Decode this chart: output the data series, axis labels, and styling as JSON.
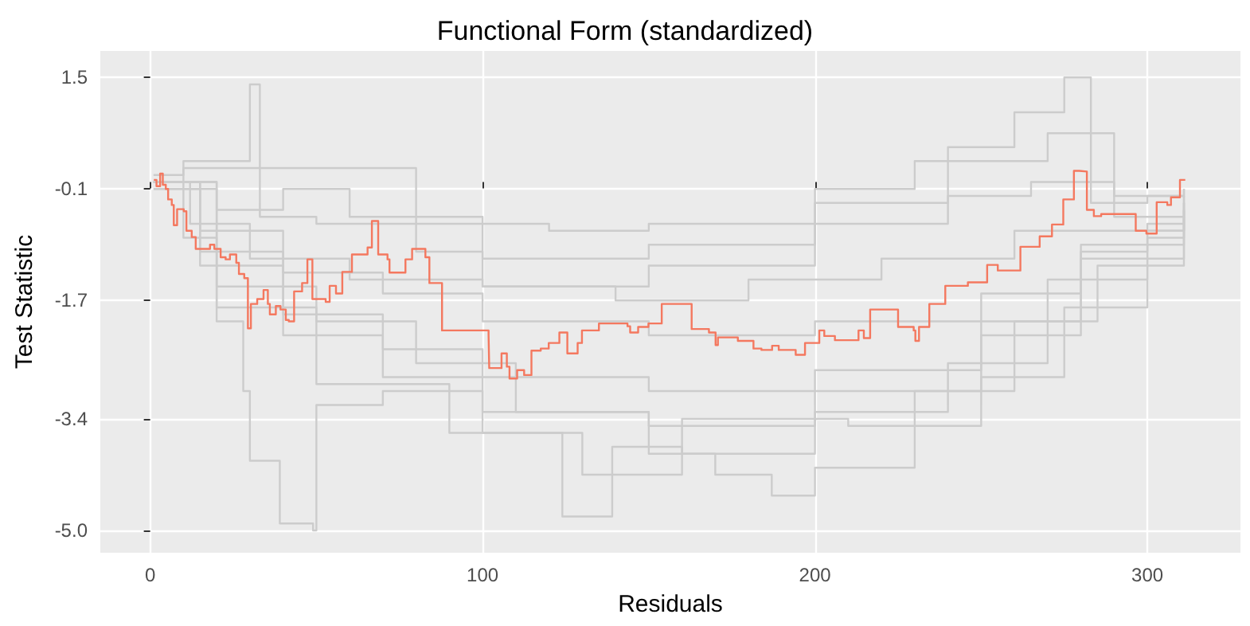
{
  "chart_data": {
    "type": "step",
    "title": "Functional Form (standardized)",
    "xlabel": "Residuals",
    "ylabel": "Test Statistic",
    "xlim": [
      -15,
      328
    ],
    "ylim": [
      -5.32,
      1.88
    ],
    "xticks": [
      0,
      100,
      200,
      300
    ],
    "yticks": [
      {
        "value": -5,
        "label": "-5.0"
      },
      {
        "value": -3.4,
        "label": "-3.4"
      },
      {
        "value": -1.7,
        "label": "-1.7"
      },
      {
        "value": -0.1,
        "label": "-0.1"
      },
      {
        "value": 1.5,
        "label": "1.5"
      }
    ],
    "grid": true,
    "marker": "none",
    "line_style": "solid",
    "series": [
      {
        "color": "#cccccc",
        "x": [
          1,
          10,
          30,
          33,
          50,
          80,
          100,
          150,
          200,
          240,
          260,
          275,
          283,
          300,
          311
        ],
        "values": [
          0,
          0.3,
          1.4,
          -0.5,
          -0.6,
          -1.0,
          -1.5,
          -1.2,
          -0.3,
          0.5,
          1.0,
          1.5,
          -0.3,
          -0.2,
          -0.1
        ]
      },
      {
        "color": "#cccccc",
        "x": [
          1,
          10,
          20,
          28,
          30,
          39,
          49,
          50,
          70,
          100,
          150,
          200,
          250,
          280,
          300,
          311
        ],
        "values": [
          0,
          -0.8,
          -2.0,
          -3.0,
          -4.0,
          -4.9,
          -5.0,
          -3.2,
          -3.0,
          -3.3,
          -3.5,
          -3.0,
          -2.0,
          -1.0,
          -0.6,
          -0.3
        ]
      },
      {
        "color": "#cccccc",
        "x": [
          1,
          15,
          40,
          70,
          100,
          124,
          139,
          160,
          200,
          240,
          270,
          300,
          311
        ],
        "values": [
          -0.1,
          -1.2,
          -2.2,
          -2.8,
          -3.6,
          -4.8,
          -3.8,
          -3.9,
          -3.3,
          -2.6,
          -1.4,
          -0.7,
          -0.4
        ]
      },
      {
        "color": "#cccccc",
        "x": [
          1,
          20,
          50,
          80,
          110,
          150,
          170,
          187,
          200,
          230,
          260,
          285,
          311
        ],
        "values": [
          0,
          -1.5,
          -2.0,
          -2.6,
          -3.3,
          -3.9,
          -4.2,
          -4.5,
          -4.1,
          -3.0,
          -2.0,
          -1.2,
          -0.4
        ]
      },
      {
        "color": "#cccccc",
        "x": [
          1,
          10,
          40,
          80,
          120,
          150,
          200,
          230,
          270,
          290,
          311
        ],
        "values": [
          0.1,
          0.2,
          0.2,
          -0.6,
          -0.7,
          -0.6,
          -0.1,
          0.3,
          0.7,
          -0.5,
          -0.3
        ]
      },
      {
        "color": "#cccccc",
        "x": [
          1,
          15,
          40,
          70,
          100,
          150,
          200,
          250,
          280,
          311
        ],
        "values": [
          0,
          -0.7,
          -1.3,
          -1.6,
          -2.0,
          -2.2,
          -2.0,
          -1.6,
          -0.9,
          -0.2
        ]
      },
      {
        "color": "#cccccc",
        "x": [
          1,
          15,
          40,
          70,
          100,
          150,
          200,
          250,
          280,
          311
        ],
        "values": [
          0,
          -1.0,
          -1.9,
          -2.4,
          -2.8,
          -3.0,
          -2.7,
          -2.2,
          -1.1,
          -0.5
        ]
      },
      {
        "color": "#cccccc",
        "x": [
          1,
          12,
          30,
          60,
          100,
          140,
          180,
          220,
          260,
          311
        ],
        "values": [
          0,
          -0.6,
          -1.1,
          -1.4,
          -1.5,
          -1.7,
          -1.4,
          -1.1,
          -0.7,
          -0.2
        ]
      },
      {
        "color": "#cccccc",
        "x": [
          1,
          20,
          50,
          90,
          130,
          160,
          210,
          250,
          275,
          300,
          311
        ],
        "values": [
          -0.1,
          -1.8,
          -2.9,
          -3.6,
          -4.2,
          -3.4,
          -3.5,
          -2.8,
          -1.8,
          -0.8,
          -0.5
        ]
      },
      {
        "color": "#cccccc",
        "x": [
          1,
          20,
          40,
          60,
          100,
          150,
          200,
          240,
          265,
          290,
          311
        ],
        "values": [
          0,
          -0.4,
          -0.1,
          -0.5,
          -1.1,
          -0.9,
          -0.6,
          -0.2,
          0.0,
          -0.2,
          -0.1
        ]
      },
      {
        "color": "#f4785f",
        "x": [
          1.1,
          1.9,
          3.0,
          3.8,
          4.7,
          5.4,
          6.5,
          7.1,
          8.1,
          10.1,
          10.9,
          12.5,
          13.7,
          18.0,
          19.3,
          21.2,
          22.7,
          24.0,
          25.9,
          26.7,
          28.3,
          29.4,
          30.3,
          32.2,
          34.1,
          35.4,
          36.0,
          37.8,
          39.2,
          40.8,
          41.7,
          43.3,
          45.7,
          47.3,
          48.8,
          52.8,
          54.0,
          55.9,
          57.8,
          60.7,
          65.4,
          66.7,
          68.6,
          71.4,
          72.0,
          76.8,
          78.8,
          82.8,
          84.0,
          87.8,
          101.8,
          102.0,
          105.7,
          107.3,
          108.1,
          110.4,
          112.5,
          114.7,
          117.5,
          119.9,
          123.1,
          125.5,
          128.6,
          129.9,
          135.0,
          143.6,
          144.4,
          146.8,
          149.9,
          153.9,
          162.9,
          168.1,
          170.1,
          170.8,
          176.8,
          181.5,
          183.9,
          187.1,
          189.1,
          194.2,
          197.0,
          201.3,
          202.8,
          206.0,
          213.1,
          214.7,
          216.6,
          221.8,
          225.0,
          229.7,
          230.2,
          231.3,
          234.4,
          239.2,
          246.0,
          251.8,
          255.0,
          261.8,
          267.6,
          271.3,
          274.7,
          277.9,
          279.5,
          281.8,
          283.9,
          286.1,
          296.5,
          299.7,
          302.8,
          306.0,
          307.1,
          309.8,
          311.4
        ],
        "values": [
          0.03,
          -0.06,
          0.12,
          -0.04,
          -0.1,
          -0.25,
          -0.33,
          -0.62,
          -0.39,
          -0.42,
          -0.7,
          -0.79,
          -0.96,
          -0.9,
          -0.96,
          -1.08,
          -1.11,
          -1.04,
          -1.16,
          -1.32,
          -1.38,
          -2.1,
          -1.75,
          -1.68,
          -1.55,
          -1.75,
          -1.9,
          -1.78,
          -1.83,
          -1.98,
          -2.0,
          -1.57,
          -1.45,
          -1.11,
          -1.68,
          -1.72,
          -1.49,
          -1.6,
          -1.29,
          -1.04,
          -0.94,
          -0.56,
          -1.04,
          -1.11,
          -1.3,
          -1.11,
          -0.96,
          -1.08,
          -1.45,
          -2.13,
          -2.19,
          -2.67,
          -2.46,
          -2.65,
          -2.82,
          -2.7,
          -2.77,
          -2.42,
          -2.39,
          -2.31,
          -2.16,
          -2.46,
          -2.31,
          -2.13,
          -2.03,
          -2.07,
          -2.16,
          -2.08,
          -2.03,
          -1.75,
          -2.11,
          -2.16,
          -2.34,
          -2.23,
          -2.28,
          -2.39,
          -2.41,
          -2.35,
          -2.41,
          -2.48,
          -2.31,
          -2.13,
          -2.21,
          -2.27,
          -2.13,
          -2.24,
          -1.83,
          -1.83,
          -2.08,
          -2.13,
          -2.28,
          -2.08,
          -1.75,
          -1.49,
          -1.44,
          -1.19,
          -1.27,
          -0.93,
          -0.78,
          -0.61,
          -0.25,
          0.16,
          0.15,
          -0.4,
          -0.49,
          -0.46,
          -0.7,
          -0.74,
          -0.29,
          -0.33,
          -0.22,
          0.03,
          0.02
        ]
      }
    ]
  }
}
